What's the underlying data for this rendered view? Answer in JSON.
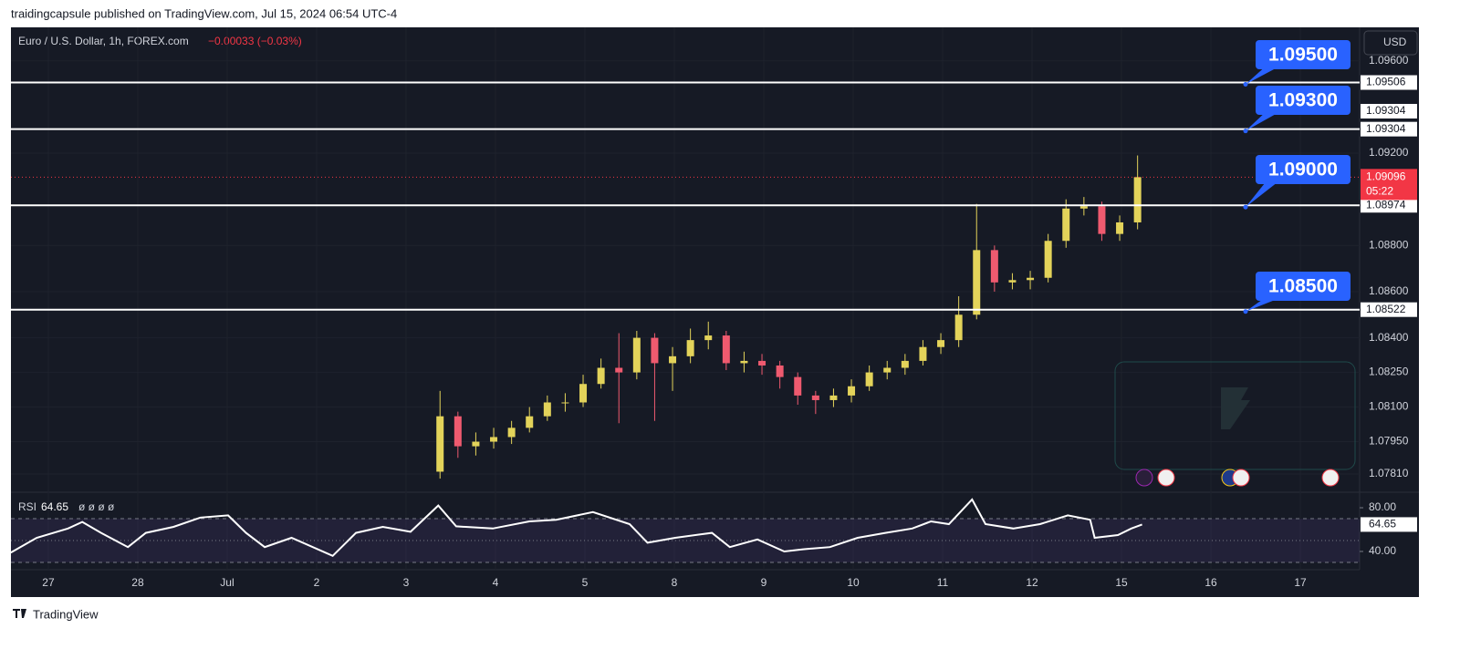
{
  "header": "traidingcapsule published on TradingView.com, Jul 15, 2024 06:54 UTC-4",
  "footer": "TradingView",
  "chart_data": {
    "type": "candlestick",
    "title": "Euro / U.S. Dollar, 1h, FOREX.com",
    "change": "−0.00033 (−0.03%)",
    "currency": "USD",
    "countdown": "05:22",
    "x": [
      4.38,
      4.58,
      4.78,
      4.98,
      5.18,
      5.38,
      5.58,
      5.78,
      5.98,
      6.18,
      6.38,
      6.58,
      6.78,
      6.98,
      7.18,
      7.38,
      7.58,
      7.78,
      7.98,
      8.18,
      8.38,
      8.58,
      8.78,
      8.98,
      9.18,
      9.38,
      9.58,
      9.78,
      9.98,
      10.18,
      10.38,
      10.58,
      10.78,
      10.98,
      11.18,
      11.38,
      11.58,
      11.78,
      11.98,
      12.18
    ],
    "open": [
      1.0782,
      1.0806,
      1.0793,
      1.0795,
      1.0797,
      1.0801,
      1.0806,
      1.0812,
      1.0812,
      1.082,
      1.0827,
      1.0825,
      1.084,
      1.0829,
      1.0832,
      1.0839,
      1.0841,
      1.0829,
      1.083,
      1.0828,
      1.0823,
      1.0815,
      1.0813,
      1.0815,
      1.0819,
      1.0825,
      1.0827,
      1.083,
      1.0836,
      1.0839,
      1.085,
      1.0878,
      1.0864,
      1.0865,
      1.0866,
      1.0882,
      1.0896,
      1.0897,
      1.0885,
      1.089
    ],
    "high": [
      1.0817,
      1.0808,
      1.0799,
      1.0801,
      1.0804,
      1.081,
      1.0815,
      1.0816,
      1.0824,
      1.0831,
      1.0842,
      1.0843,
      1.0842,
      1.0836,
      1.0844,
      1.0847,
      1.0843,
      1.0834,
      1.0833,
      1.083,
      1.0825,
      1.0817,
      1.0818,
      1.0822,
      1.0828,
      1.083,
      1.0833,
      1.0839,
      1.0842,
      1.0858,
      1.0898,
      1.088,
      1.0868,
      1.0869,
      1.0885,
      1.09,
      1.0901,
      1.0899,
      1.0893,
      1.0919
    ],
    "low": [
      1.0779,
      1.0788,
      1.0789,
      1.0792,
      1.0794,
      1.0799,
      1.0804,
      1.0808,
      1.081,
      1.0818,
      1.0803,
      1.0822,
      1.0804,
      1.0817,
      1.0829,
      1.0835,
      1.0826,
      1.0825,
      1.0824,
      1.0818,
      1.0811,
      1.0807,
      1.081,
      1.0812,
      1.0817,
      1.0822,
      1.0824,
      1.0828,
      1.0833,
      1.0836,
      1.0848,
      1.086,
      1.0861,
      1.0861,
      1.0864,
      1.0879,
      1.0893,
      1.0882,
      1.0882,
      1.0887
    ],
    "close": [
      1.0806,
      1.0793,
      1.0795,
      1.0797,
      1.0801,
      1.0806,
      1.0812,
      1.0812,
      1.082,
      1.0827,
      1.0825,
      1.084,
      1.0829,
      1.0832,
      1.0839,
      1.0841,
      1.0829,
      1.083,
      1.0828,
      1.0823,
      1.0815,
      1.0813,
      1.0815,
      1.0819,
      1.0825,
      1.0827,
      1.083,
      1.0836,
      1.0839,
      1.085,
      1.0878,
      1.0864,
      1.0865,
      1.0866,
      1.0882,
      1.0896,
      1.0897,
      1.0885,
      1.089,
      1.09096
    ],
    "up_color": "#e3d35a",
    "down_color": "#ef5a6f",
    "grid": true,
    "xlim": [
      -0.418,
      14.663
    ],
    "xticks": [
      {
        "value": 0,
        "label": "27"
      },
      {
        "value": 1,
        "label": "28"
      },
      {
        "value": 2,
        "label": "Jul"
      },
      {
        "value": 3,
        "label": "2"
      },
      {
        "value": 4,
        "label": "3"
      },
      {
        "value": 5,
        "label": "4"
      },
      {
        "value": 6,
        "label": "5"
      },
      {
        "value": 7,
        "label": "8"
      },
      {
        "value": 8,
        "label": "9"
      },
      {
        "value": 9,
        "label": "10"
      },
      {
        "value": 10,
        "label": "11"
      },
      {
        "value": 11,
        "label": "12"
      },
      {
        "value": 12,
        "label": "15"
      },
      {
        "value": 13,
        "label": "16"
      },
      {
        "value": 14,
        "label": "17"
      }
    ],
    "ylim": [
      1.07731,
      1.09745
    ],
    "yticks": [
      {
        "value": 1.096,
        "label": "1.09600"
      },
      {
        "value": 1.092,
        "label": "1.09200"
      },
      {
        "value": 1.088,
        "label": "1.08800"
      },
      {
        "value": 1.086,
        "label": "1.08600"
      },
      {
        "value": 1.084,
        "label": "1.08400"
      },
      {
        "value": 1.0825,
        "label": "1.08250"
      },
      {
        "value": 1.081,
        "label": "1.08100"
      },
      {
        "value": 1.0795,
        "label": "1.07950"
      },
      {
        "value": 1.0781,
        "label": "1.07810"
      }
    ],
    "levels": [
      1.09506,
      1.09304,
      1.08974,
      1.08522
    ],
    "level_color": "#ffffff",
    "annotations": [
      "1.09500",
      "1.09300",
      "1.09000",
      "1.08500"
    ],
    "annotation_color": "#2962ff",
    "rsi": {
      "name": "RSI",
      "inputs": "ø ø ø ø",
      "color": "#ffffff",
      "x": [
        -0.42,
        -0.13,
        0.22,
        0.38,
        0.59,
        0.89,
        1.09,
        1.4,
        1.7,
        2.01,
        2.21,
        2.42,
        2.72,
        3.18,
        3.44,
        3.74,
        4.05,
        4.36,
        4.56,
        4.97,
        5.38,
        5.68,
        6.09,
        6.5,
        6.7,
        7.01,
        7.42,
        7.62,
        7.93,
        8.23,
        8.44,
        8.74,
        9.05,
        9.36,
        9.66,
        9.87,
        10.07,
        10.33,
        10.48,
        10.79,
        11.09,
        11.4,
        11.65,
        11.7,
        11.96,
        12.11,
        12.23
      ],
      "values": [
        39,
        52.5,
        61,
        67,
        57,
        44,
        57,
        62.5,
        71,
        73,
        57,
        44,
        52.5,
        36,
        57,
        62.5,
        58,
        82,
        63,
        61,
        67.5,
        69,
        76,
        65,
        48,
        52.5,
        57,
        44,
        51,
        40,
        42,
        44,
        52.5,
        57,
        61,
        67.5,
        65,
        87.5,
        65,
        61,
        65,
        73,
        69,
        52.5,
        55,
        61,
        64.65
      ],
      "ylim": [
        23.3,
        94.2
      ],
      "yticks": [
        {
          "value": 80,
          "label": "80.00"
        },
        {
          "value": 40,
          "label": "40.00"
        }
      ],
      "levels": [
        70,
        50,
        30
      ]
    }
  }
}
